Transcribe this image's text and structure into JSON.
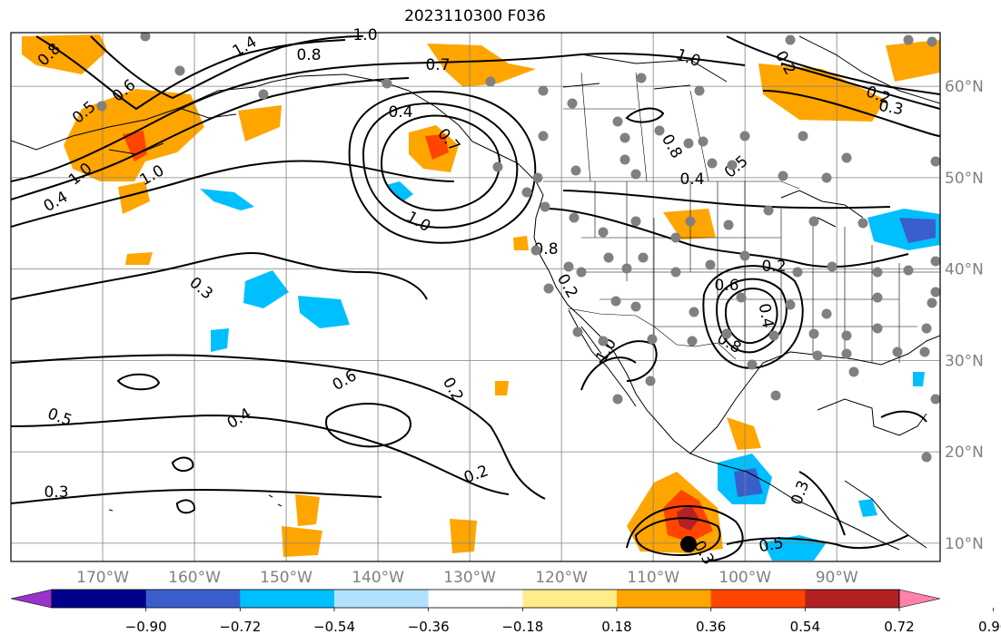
{
  "title": "2023110300 F036",
  "map": {
    "lon_range": [
      -180,
      -80
    ],
    "lat_range": [
      8,
      65
    ],
    "gridlines": true,
    "lon_ticks": [
      "170°W",
      "160°W",
      "150°W",
      "140°W",
      "130°W",
      "120°W",
      "110°W",
      "100°W",
      "90°W"
    ],
    "lat_ticks": [
      "60°N",
      "50°N",
      "40°N",
      "30°N",
      "20°N",
      "10°N"
    ]
  },
  "colorbar": {
    "colors": [
      "#9932CC",
      "#00008B",
      "#3A5FCD",
      "#00BFFF",
      "#B0E2FF",
      "#FFFFFF",
      "#FFEC8B",
      "#FFA500",
      "#FF4500",
      "#B22222",
      "#FF82AB"
    ],
    "tick_labels": [
      "−0.90",
      "−0.72",
      "−0.54",
      "−0.36",
      "−0.18",
      "0.18",
      "0.36",
      "0.54",
      "0.72",
      "0.90"
    ],
    "extend": "both"
  },
  "contour_labels": [
    "0.8",
    "1.4",
    "0.8",
    "1.0",
    "0.7",
    "1.0",
    "0.4",
    "0.2",
    "0.5",
    "0.6",
    "0.7",
    "0.8",
    "0.5",
    "0.4",
    "1.0",
    "0.4",
    "1.0",
    "1.0",
    "0.8",
    "0.3",
    "0.2",
    "0.4",
    "0.6",
    "0.8",
    "1.0",
    "0.6",
    "0.2",
    "0.4",
    "0.5",
    "0.3",
    "0.3",
    "0.2",
    "0.5",
    "0.3",
    "0.2",
    "0.3",
    "0.2"
  ],
  "colors": {
    "land": "#000000",
    "contour": "#000000",
    "grid": "#808080",
    "station": "#808080"
  }
}
